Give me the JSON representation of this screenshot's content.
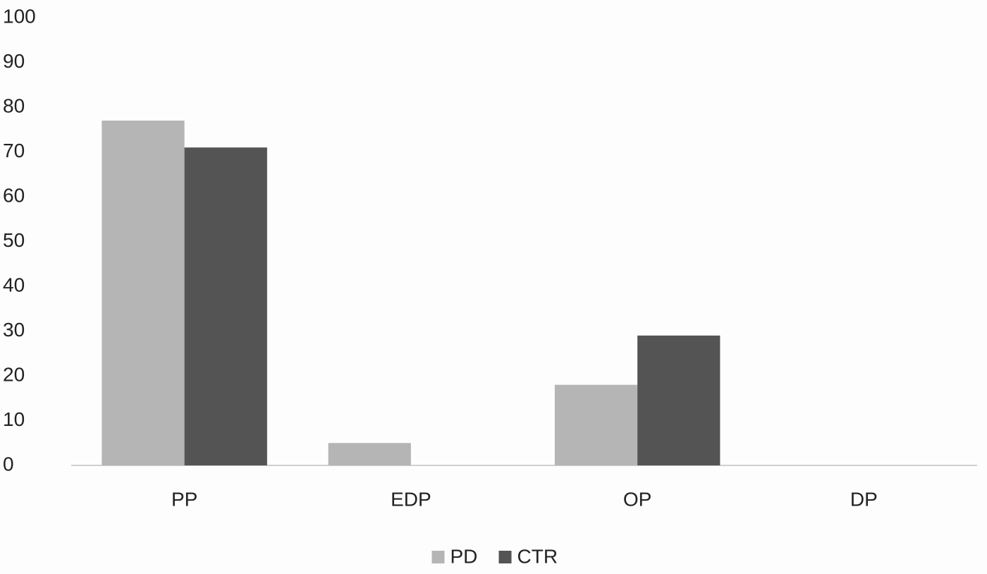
{
  "chart_data": {
    "type": "bar",
    "categories": [
      "PP",
      "EDP",
      "OP",
      "DP"
    ],
    "series": [
      {
        "name": "PD",
        "color": "#b5b5b5",
        "values": [
          77,
          5,
          18,
          0
        ]
      },
      {
        "name": "CTR",
        "color": "#545454",
        "values": [
          71,
          0,
          29,
          0
        ]
      }
    ],
    "ylim": [
      0,
      100
    ],
    "yticks": [
      0,
      10,
      20,
      30,
      40,
      50,
      60,
      70,
      80,
      90,
      100
    ],
    "grid": false,
    "legend": "bottom"
  }
}
